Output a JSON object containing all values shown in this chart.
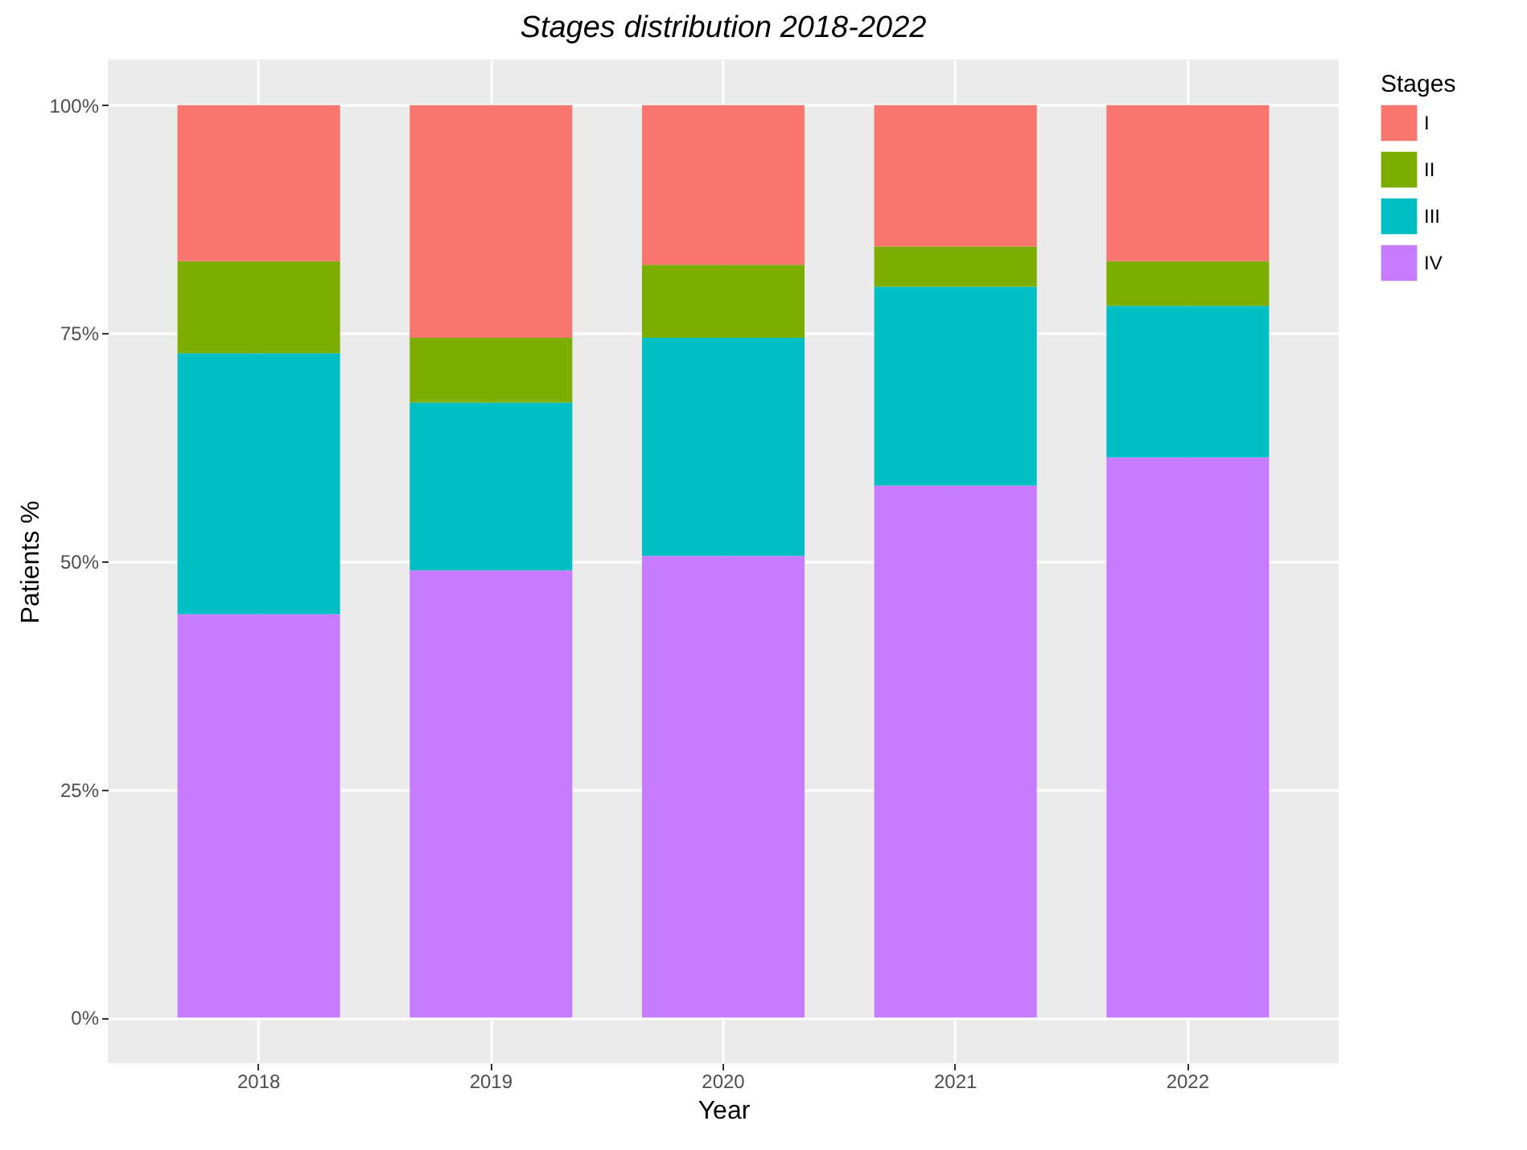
{
  "chart_data": {
    "type": "bar",
    "title": "Stages distribution 2018-2022",
    "xlabel": "Year",
    "ylabel": "Patients %",
    "legend_title": "Stages",
    "categories": [
      "2018",
      "2019",
      "2020",
      "2021",
      "2022"
    ],
    "stacked": true,
    "series": [
      {
        "name": "IV",
        "color": "#c77cff",
        "values": [
          44.2,
          49.0,
          50.6,
          58.3,
          61.4
        ]
      },
      {
        "name": "III",
        "color": "#00bfc4",
        "values": [
          28.6,
          18.4,
          23.9,
          21.8,
          16.6
        ]
      },
      {
        "name": "II",
        "color": "#7cae00",
        "values": [
          10.1,
          7.1,
          8.0,
          4.4,
          4.9
        ]
      },
      {
        "name": "I",
        "color": "#f8766d",
        "values": [
          17.1,
          25.5,
          17.5,
          15.5,
          17.1
        ]
      }
    ],
    "ylim": [
      -5,
      105
    ],
    "yticks": [
      {
        "value": 0,
        "label": "0%"
      },
      {
        "value": 25,
        "label": "25%"
      },
      {
        "value": 50,
        "label": "50%"
      },
      {
        "value": 75,
        "label": "75%"
      },
      {
        "value": 100,
        "label": "100%"
      }
    ],
    "grid": true,
    "legend": "right"
  }
}
